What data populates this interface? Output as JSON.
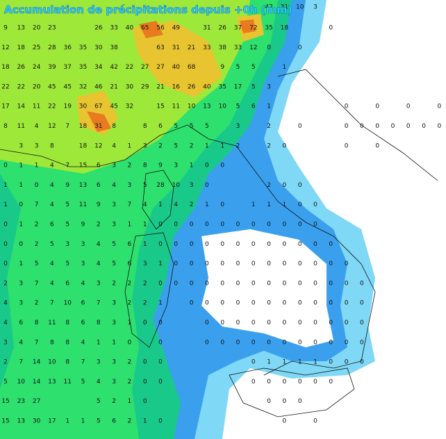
{
  "title": "Accumulation de précipitations depuis +0h (mm)",
  "grid": {
    "rows": [
      [
        null,
        null,
        null,
        null,
        null,
        null,
        null,
        null,
        null,
        null,
        null,
        null,
        null,
        null,
        null,
        null,
        null,
        42,
        31,
        10,
        3
      ],
      [
        9,
        13,
        20,
        23,
        null,
        null,
        26,
        33,
        40,
        65,
        56,
        49,
        null,
        31,
        26,
        37,
        72,
        35,
        18,
        null,
        null,
        0
      ],
      [
        12,
        18,
        25,
        28,
        36,
        35,
        30,
        38,
        null,
        null,
        63,
        31,
        21,
        33,
        38,
        33,
        12,
        0,
        null,
        0
      ],
      [
        18,
        26,
        24,
        39,
        37,
        35,
        34,
        42,
        22,
        27,
        27,
        40,
        68,
        null,
        9,
        5,
        5,
        null,
        1
      ],
      [
        22,
        22,
        20,
        45,
        45,
        32,
        46,
        21,
        30,
        29,
        21,
        16,
        26,
        40,
        35,
        17,
        5,
        3
      ],
      [
        17,
        14,
        11,
        22,
        19,
        30,
        67,
        45,
        32,
        null,
        15,
        11,
        10,
        13,
        10,
        5,
        6,
        1,
        null,
        null,
        null,
        null,
        0,
        null,
        0,
        null,
        0,
        null,
        0
      ],
      [
        8,
        11,
        4,
        12,
        7,
        18,
        31,
        8,
        null,
        8,
        6,
        5,
        5,
        5,
        null,
        3,
        null,
        2,
        null,
        0,
        null,
        null,
        0,
        0,
        0,
        0,
        0,
        0,
        0
      ],
      [
        null,
        3,
        3,
        8,
        null,
        18,
        12,
        4,
        1,
        3,
        2,
        5,
        2,
        1,
        1,
        2,
        null,
        2,
        0,
        null,
        null,
        null,
        0,
        null,
        0
      ],
      [
        0,
        1,
        1,
        4,
        7,
        15,
        6,
        3,
        2,
        8,
        9,
        3,
        1,
        0,
        0
      ],
      [
        1,
        1,
        0,
        4,
        9,
        13,
        6,
        4,
        3,
        5,
        28,
        10,
        3,
        0,
        null,
        null,
        null,
        2,
        0,
        0
      ],
      [
        1,
        0,
        7,
        4,
        5,
        11,
        9,
        3,
        7,
        4,
        1,
        4,
        2,
        1,
        0,
        null,
        1,
        1,
        1,
        0,
        0
      ],
      [
        0,
        1,
        2,
        6,
        5,
        9,
        2,
        3,
        1,
        1,
        0,
        0,
        0,
        0,
        0,
        0,
        0,
        0,
        0,
        0,
        0
      ],
      [
        0,
        0,
        2,
        5,
        3,
        3,
        4,
        5,
        6,
        1,
        0,
        0,
        0,
        0,
        0,
        0,
        0,
        0,
        0,
        0,
        0,
        0
      ],
      [
        0,
        1,
        5,
        4,
        5,
        3,
        4,
        5,
        6,
        3,
        1,
        0,
        0,
        0,
        0,
        0,
        0,
        0,
        0,
        0,
        0,
        0,
        0
      ],
      [
        2,
        3,
        7,
        4,
        6,
        4,
        3,
        2,
        2,
        2,
        0,
        0,
        0,
        0,
        0,
        0,
        0,
        0,
        0,
        0,
        0,
        0,
        0,
        0
      ],
      [
        4,
        3,
        2,
        7,
        10,
        6,
        7,
        3,
        2,
        2,
        1,
        null,
        0,
        0,
        0,
        0,
        0,
        0,
        0,
        0,
        0,
        0,
        0,
        0
      ],
      [
        4,
        6,
        8,
        11,
        8,
        6,
        8,
        3,
        1,
        0,
        0,
        null,
        null,
        0,
        0,
        0,
        0,
        0,
        0,
        0,
        0,
        0,
        0,
        0
      ],
      [
        3,
        4,
        7,
        8,
        8,
        4,
        1,
        1,
        0,
        null,
        0,
        null,
        null,
        0,
        0,
        0,
        0,
        0,
        0,
        0,
        0,
        0,
        0,
        0
      ],
      [
        2,
        7,
        14,
        10,
        8,
        7,
        3,
        3,
        2,
        0,
        0,
        null,
        null,
        null,
        null,
        null,
        0,
        1,
        1,
        1,
        1,
        0,
        0,
        0
      ],
      [
        5,
        10,
        14,
        13,
        11,
        5,
        4,
        3,
        2,
        0,
        0,
        null,
        null,
        null,
        null,
        null,
        0,
        0,
        0,
        0,
        0,
        0
      ],
      [
        15,
        23,
        27,
        null,
        null,
        null,
        5,
        2,
        1,
        0,
        null,
        null,
        null,
        null,
        null,
        null,
        null,
        0,
        0,
        0
      ],
      [
        15,
        13,
        30,
        17,
        1,
        1,
        5,
        6,
        2,
        1,
        0,
        null,
        null,
        null,
        null,
        null,
        null,
        null,
        0,
        null,
        0
      ]
    ]
  }
}
